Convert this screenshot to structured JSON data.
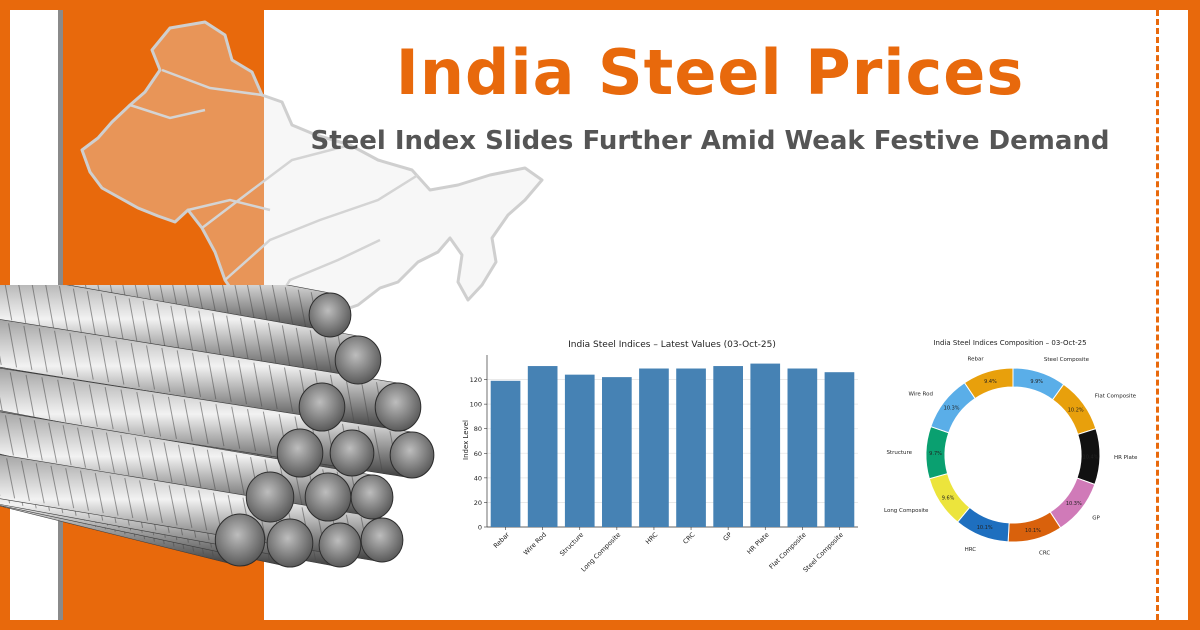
{
  "header": {
    "title": "India Steel Prices",
    "subtitle": "Steel Index Slides Further Amid Weak Festive Demand"
  },
  "illustrations": {
    "map_icon": "india-map-outline",
    "rods_icon": "steel-rebar-bundle"
  },
  "colors": {
    "accent": "#e8690c",
    "bar": "#4682b4",
    "subtitle": "#555555"
  },
  "chart_data": [
    {
      "type": "bar",
      "title": "India Steel Indices – Latest Values (03-Oct-25)",
      "xlabel": "",
      "ylabel": "Index Level",
      "ylim": [
        0,
        140
      ],
      "yticks": [
        0,
        20,
        40,
        60,
        80,
        100,
        120
      ],
      "grid": true,
      "categories": [
        "Rebar",
        "Wire Rod",
        "Structure",
        "Long Composite",
        "HRC",
        "CRC",
        "GP",
        "HR Plate",
        "Flat Composite",
        "Steel Composite"
      ],
      "values": [
        119,
        131,
        124,
        122,
        129,
        129,
        131,
        133,
        129,
        126
      ]
    },
    {
      "type": "pie",
      "title": "India Steel Indices Composition – 03-Oct-25",
      "donut": true,
      "labels": [
        "Steel Composite",
        "Flat Composite",
        "HR Plate",
        "GP",
        "CRC",
        "HRC",
        "Long Composite",
        "Structure",
        "Wire Rod",
        "Rebar"
      ],
      "values": [
        9.9,
        10.2,
        10.4,
        10.3,
        10.1,
        10.1,
        9.6,
        9.7,
        10.3,
        9.4
      ],
      "value_labels": [
        "9.9%",
        "10.2%",
        "10.4%",
        "10.3%",
        "10.1%",
        "10.1%",
        "9.6%",
        "9.7%",
        "10.3%",
        "9.4%"
      ],
      "colors": [
        "#5aaee8",
        "#e8a00c",
        "#111111",
        "#d07ab8",
        "#d9610c",
        "#1e6fbf",
        "#ece43c",
        "#0aa070",
        "#5aaee8",
        "#e8a00c"
      ]
    }
  ]
}
